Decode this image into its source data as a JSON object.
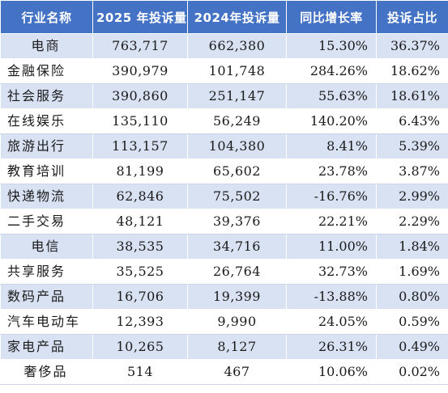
{
  "table": {
    "headers": [
      "行业名称",
      "2025 年投诉量",
      "2024年投诉量",
      "同比增长率",
      "投诉占比"
    ],
    "rows": [
      {
        "industry": "电商",
        "count_2025": "763,717",
        "count_2024": "662,380",
        "yoy": "15.30%",
        "share": "36.37%"
      },
      {
        "industry": "金融保险",
        "count_2025": "390,979",
        "count_2024": "101,748",
        "yoy": "284.26%",
        "share": "18.62%"
      },
      {
        "industry": "社会服务",
        "count_2025": "390,860",
        "count_2024": "251,147",
        "yoy": "55.63%",
        "share": "18.61%"
      },
      {
        "industry": "在线娱乐",
        "count_2025": "135,110",
        "count_2024": "56,249",
        "yoy": "140.20%",
        "share": "6.43%"
      },
      {
        "industry": "旅游出行",
        "count_2025": "113,157",
        "count_2024": "104,380",
        "yoy": "8.41%",
        "share": "5.39%"
      },
      {
        "industry": "教育培训",
        "count_2025": "81,199",
        "count_2024": "65,602",
        "yoy": "23.78%",
        "share": "3.87%"
      },
      {
        "industry": "快递物流",
        "count_2025": "62,846",
        "count_2024": "75,502",
        "yoy": "-16.76%",
        "share": "2.99%"
      },
      {
        "industry": "二手交易",
        "count_2025": "48,121",
        "count_2024": "39,376",
        "yoy": "22.21%",
        "share": "2.29%"
      },
      {
        "industry": "电信",
        "count_2025": "38,535",
        "count_2024": "34,716",
        "yoy": "11.00%",
        "share": "1.84%"
      },
      {
        "industry": "共享服务",
        "count_2025": "35,525",
        "count_2024": "26,764",
        "yoy": "32.73%",
        "share": "1.69%"
      },
      {
        "industry": "数码产品",
        "count_2025": "16,706",
        "count_2024": "19,399",
        "yoy": "-13.88%",
        "share": "0.80%"
      },
      {
        "industry": "汽车电动车",
        "count_2025": "12,393",
        "count_2024": "9,990",
        "yoy": "24.05%",
        "share": "0.59%"
      },
      {
        "industry": "家电产品",
        "count_2025": "10,265",
        "count_2024": "8,127",
        "yoy": "26.31%",
        "share": "0.49%"
      },
      {
        "industry": "奢侈品",
        "count_2025": "514",
        "count_2024": "467",
        "yoy": "10.06%",
        "share": "0.02%"
      }
    ]
  },
  "colors": {
    "header_bg": "#4472c4",
    "header_text": "#ffffff",
    "band_row": "#d9e2f3",
    "plain_row": "#ffffff"
  }
}
